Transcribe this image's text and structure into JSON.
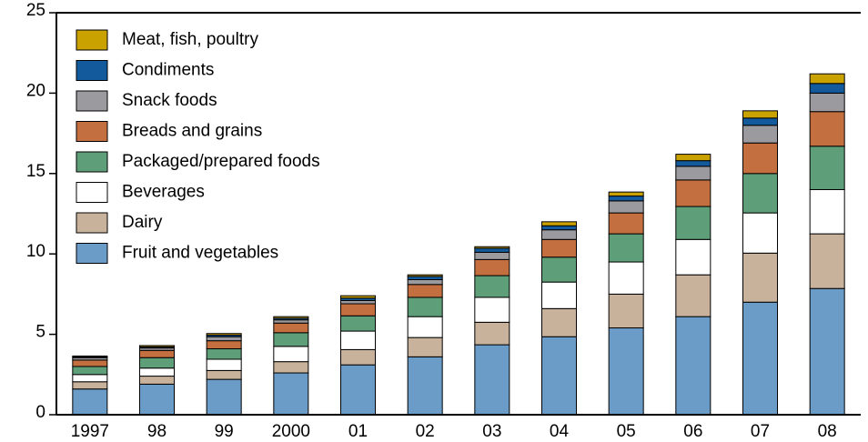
{
  "chart_data": {
    "type": "stacked_bar",
    "categories": [
      "1997",
      "98",
      "99",
      "2000",
      "01",
      "02",
      "03",
      "04",
      "05",
      "06",
      "07",
      "08"
    ],
    "series": [
      {
        "name": "Fruit and vegetables",
        "color": "#6b9cc7",
        "values": [
          1.6,
          1.9,
          2.2,
          2.6,
          3.1,
          3.6,
          4.35,
          4.85,
          5.4,
          6.1,
          7.0,
          7.85
        ]
      },
      {
        "name": "Dairy",
        "color": "#c9b29b",
        "values": [
          0.45,
          0.5,
          0.55,
          0.7,
          0.95,
          1.2,
          1.4,
          1.75,
          2.1,
          2.6,
          3.05,
          3.4
        ]
      },
      {
        "name": "Beverages",
        "color": "#ffffff",
        "values": [
          0.45,
          0.5,
          0.7,
          0.95,
          1.15,
          1.3,
          1.55,
          1.65,
          2.0,
          2.2,
          2.5,
          2.75
        ]
      },
      {
        "name": "Packaged/prepared foods",
        "color": "#5e9e78",
        "values": [
          0.5,
          0.65,
          0.65,
          0.85,
          0.95,
          1.2,
          1.35,
          1.55,
          1.75,
          2.05,
          2.45,
          2.7
        ]
      },
      {
        "name": "Breads and grains",
        "color": "#c36f3f",
        "values": [
          0.4,
          0.45,
          0.5,
          0.6,
          0.75,
          0.8,
          1.0,
          1.1,
          1.3,
          1.65,
          1.9,
          2.15
        ]
      },
      {
        "name": "Snack foods",
        "color": "#9a9a9f",
        "values": [
          0.15,
          0.15,
          0.25,
          0.2,
          0.2,
          0.3,
          0.45,
          0.6,
          0.75,
          0.85,
          1.1,
          1.15
        ]
      },
      {
        "name": "Condiments",
        "color": "#125a9b",
        "values": [
          0.05,
          0.07,
          0.1,
          0.1,
          0.15,
          0.2,
          0.25,
          0.25,
          0.3,
          0.35,
          0.45,
          0.6
        ]
      },
      {
        "name": "Meat, fish, poultry",
        "color": "#c9a200",
        "values": [
          0.05,
          0.08,
          0.1,
          0.1,
          0.15,
          0.1,
          0.1,
          0.25,
          0.25,
          0.4,
          0.45,
          0.6
        ]
      }
    ],
    "ylim": [
      0,
      25
    ],
    "yticks": [
      0,
      5,
      10,
      15,
      20,
      25
    ],
    "legend": "upper left"
  }
}
